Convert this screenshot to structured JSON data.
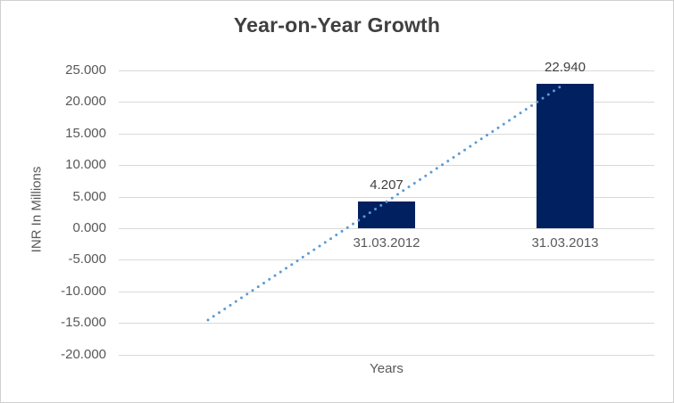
{
  "chart_data": {
    "type": "bar",
    "title": "Year-on-Year Growth",
    "ylabel": "INR In Millions",
    "xlabel": "Years",
    "categories": [
      "31.03.2012",
      "31.03.2013"
    ],
    "values": [
      4.207,
      22.94
    ],
    "value_labels": [
      "4.207",
      "22.940"
    ],
    "yticks": {
      "values": [
        25,
        20,
        15,
        10,
        5,
        0,
        -5,
        -10,
        -15,
        -20
      ],
      "labels": [
        "25.000",
        "20.000",
        "15.000",
        "10.000",
        "5.000",
        "0.000",
        "-5.000",
        "-10.000",
        "-15.000",
        "-20.000"
      ]
    },
    "ylim": [
      -20,
      25
    ],
    "grid": true,
    "legend": "none",
    "colors": {
      "bar": "#002060",
      "trendline": "#5b9bd5",
      "gridline": "#d9d9d9",
      "title_text": "#404040",
      "axis_text": "#595959",
      "data_label_text": "#404040"
    },
    "trendline": {
      "type": "linear",
      "style": "dotted",
      "color": "#5b9bd5",
      "back_periods": 1,
      "start_value": -14.53,
      "end_value": 22.94
    }
  }
}
